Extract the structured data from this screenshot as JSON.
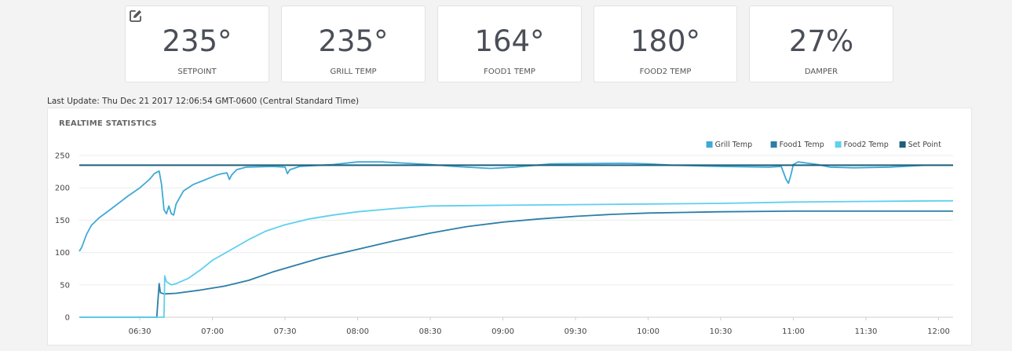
{
  "cards": [
    {
      "value": "235°",
      "label": "SETPOINT"
    },
    {
      "value": "235°",
      "label": "GRILL TEMP"
    },
    {
      "value": "164°",
      "label": "FOOD1 TEMP"
    },
    {
      "value": "180°",
      "label": "FOOD2 TEMP"
    },
    {
      "value": "27%",
      "label": "DAMPER"
    }
  ],
  "last_update": "Last Update: Thu Dec 21 2017 12:06:54 GMT-0600 (Central Standard Time)",
  "panel": {
    "title": "REALTIME STATISTICS"
  },
  "chart_data": {
    "type": "line",
    "title": "",
    "xlabel": "",
    "ylabel": "",
    "ylim": [
      0,
      250
    ],
    "yticks": [
      0,
      50,
      100,
      150,
      200,
      250
    ],
    "xtick_labels": [
      "06:30",
      "07:00",
      "07:30",
      "08:00",
      "08:30",
      "09:00",
      "09:30",
      "10:00",
      "10:30",
      "11:00",
      "11:30",
      "12:00"
    ],
    "xtick_minutes": [
      390,
      420,
      450,
      480,
      510,
      540,
      570,
      600,
      630,
      660,
      690,
      720
    ],
    "xlim_minutes": [
      365,
      726
    ],
    "grid": true,
    "legend_position": "top-right",
    "series": [
      {
        "name": "Grill Temp",
        "color": "#3fa9d6",
        "points": [
          [
            365,
            102
          ],
          [
            366,
            108
          ],
          [
            368,
            128
          ],
          [
            370,
            142
          ],
          [
            373,
            153
          ],
          [
            378,
            167
          ],
          [
            385,
            187
          ],
          [
            390,
            200
          ],
          [
            394,
            213
          ],
          [
            396,
            222
          ],
          [
            398,
            226
          ],
          [
            399,
            205
          ],
          [
            400,
            166
          ],
          [
            401,
            160
          ],
          [
            402,
            172
          ],
          [
            403,
            160
          ],
          [
            404,
            158
          ],
          [
            405,
            175
          ],
          [
            408,
            195
          ],
          [
            412,
            205
          ],
          [
            418,
            214
          ],
          [
            422,
            220
          ],
          [
            424,
            222
          ],
          [
            426,
            223
          ],
          [
            427,
            213
          ],
          [
            428,
            220
          ],
          [
            430,
            228
          ],
          [
            434,
            232
          ],
          [
            445,
            233
          ],
          [
            450,
            232
          ],
          [
            451,
            222
          ],
          [
            452,
            228
          ],
          [
            456,
            233
          ],
          [
            470,
            236
          ],
          [
            480,
            240
          ],
          [
            490,
            240
          ],
          [
            500,
            238
          ],
          [
            510,
            236
          ],
          [
            520,
            233
          ],
          [
            535,
            230
          ],
          [
            545,
            232
          ],
          [
            560,
            237
          ],
          [
            590,
            238
          ],
          [
            600,
            237
          ],
          [
            610,
            235
          ],
          [
            630,
            233
          ],
          [
            650,
            232
          ],
          [
            655,
            233
          ],
          [
            657,
            213
          ],
          [
            658,
            207
          ],
          [
            659,
            220
          ],
          [
            660,
            236
          ],
          [
            662,
            240
          ],
          [
            666,
            238
          ],
          [
            670,
            236
          ],
          [
            675,
            232
          ],
          [
            685,
            231
          ],
          [
            700,
            232
          ],
          [
            715,
            235
          ],
          [
            726,
            235
          ]
        ]
      },
      {
        "name": "Food1 Temp",
        "color": "#2b7ea8",
        "points": [
          [
            365,
            0
          ],
          [
            397,
            0
          ],
          [
            398,
            52
          ],
          [
            398.5,
            38
          ],
          [
            400,
            36
          ],
          [
            405,
            37
          ],
          [
            415,
            42
          ],
          [
            425,
            48
          ],
          [
            435,
            57
          ],
          [
            445,
            70
          ],
          [
            455,
            81
          ],
          [
            465,
            92
          ],
          [
            480,
            105
          ],
          [
            495,
            118
          ],
          [
            510,
            130
          ],
          [
            525,
            140
          ],
          [
            540,
            147
          ],
          [
            555,
            152
          ],
          [
            570,
            156
          ],
          [
            585,
            159
          ],
          [
            600,
            161
          ],
          [
            615,
            162
          ],
          [
            630,
            163
          ],
          [
            660,
            164
          ],
          [
            700,
            164
          ],
          [
            726,
            164
          ]
        ]
      },
      {
        "name": "Food2 Temp",
        "color": "#5fd0ee",
        "points": [
          [
            365,
            0
          ],
          [
            400,
            0
          ],
          [
            400.3,
            64
          ],
          [
            401,
            55
          ],
          [
            403,
            50
          ],
          [
            405,
            52
          ],
          [
            410,
            60
          ],
          [
            415,
            73
          ],
          [
            420,
            88
          ],
          [
            428,
            105
          ],
          [
            435,
            120
          ],
          [
            442,
            133
          ],
          [
            450,
            143
          ],
          [
            460,
            152
          ],
          [
            470,
            158
          ],
          [
            480,
            163
          ],
          [
            495,
            168
          ],
          [
            510,
            172
          ],
          [
            540,
            173
          ],
          [
            570,
            174
          ],
          [
            600,
            175
          ],
          [
            630,
            176
          ],
          [
            660,
            178
          ],
          [
            690,
            179
          ],
          [
            726,
            180
          ]
        ]
      },
      {
        "name": "Set Point",
        "color": "#1d5f7a",
        "points": [
          [
            365,
            235
          ],
          [
            726,
            235
          ]
        ]
      }
    ]
  }
}
